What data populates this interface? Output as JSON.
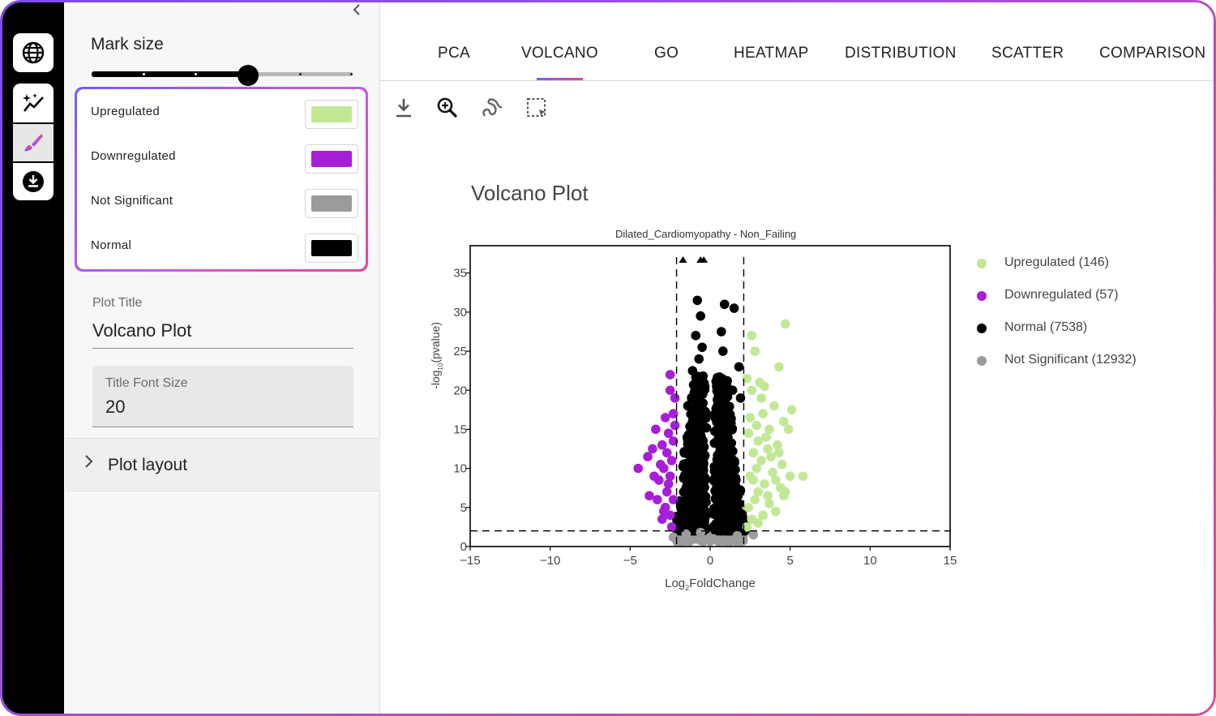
{
  "rail": {
    "icons": [
      "globe-icon",
      "sparkle-chart-icon",
      "brush-icon",
      "download-circle-icon"
    ]
  },
  "settings": {
    "mark_size_label": "Mark size",
    "mark_size_level": 0.6,
    "colors": [
      {
        "label": "Upregulated",
        "color": "#c2e895"
      },
      {
        "label": "Downregulated",
        "color": "#a71ed8"
      },
      {
        "label": "Not Significant",
        "color": "#9b9b9b"
      },
      {
        "label": "Normal",
        "color": "#000000"
      }
    ],
    "plot_title_label": "Plot Title",
    "plot_title_value": "Volcano Plot",
    "title_font_size_label": "Title Font Size",
    "title_font_size_value": "20",
    "plot_layout_label": "Plot layout"
  },
  "tabs": [
    "PCA",
    "VOLCANO",
    "GO",
    "HEATMAP",
    "DISTRIBUTION",
    "SCATTER",
    "COMPARISON"
  ],
  "active_tab": "VOLCANO",
  "toolbar_icons": [
    "download-icon",
    "zoom-in-icon",
    "lasso-icon",
    "box-select-icon"
  ],
  "chart_data": {
    "type": "scatter",
    "title": "Volcano Plot",
    "subtitle": "Dilated_Cardiomyopathy - Non_Failing",
    "xlabel": "Log2FoldChange",
    "ylabel": "-log10(pvalue)",
    "xlim": [
      -15,
      15
    ],
    "ylim": [
      0,
      38.5
    ],
    "xticks": [
      "−15",
      "−10",
      "−5",
      "0",
      "5",
      "10",
      "15"
    ],
    "yticks": [
      "0",
      "5",
      "10",
      "15",
      "20",
      "25",
      "30",
      "35"
    ],
    "xtick_values": [
      -15,
      -10,
      -5,
      0,
      5,
      10,
      15
    ],
    "ytick_values": [
      0,
      5,
      10,
      15,
      20,
      25,
      30,
      35
    ],
    "thresholds": {
      "fold_change": [
        -2.1,
        2.1
      ],
      "pvalue": 2
    },
    "legend_position": "right",
    "series": [
      {
        "name": "Upregulated (146)",
        "color": "#c2e895",
        "points": [
          [
            4.7,
            28.5
          ],
          [
            2.6,
            27
          ],
          [
            2.8,
            25
          ],
          [
            4.3,
            23
          ],
          [
            2.3,
            21.5
          ],
          [
            3.1,
            21
          ],
          [
            3.4,
            20.5
          ],
          [
            2.6,
            20
          ],
          [
            5.1,
            17.5
          ],
          [
            3.3,
            17
          ],
          [
            4.6,
            16
          ],
          [
            4.9,
            15
          ],
          [
            2.9,
            15.5
          ],
          [
            3.7,
            15
          ],
          [
            2.4,
            14.5
          ],
          [
            3.0,
            13.5
          ],
          [
            4.2,
            13
          ],
          [
            3.6,
            12.5
          ],
          [
            2.7,
            12
          ],
          [
            3.2,
            11
          ],
          [
            4.5,
            10.5
          ],
          [
            5.0,
            9
          ],
          [
            3.9,
            9.5
          ],
          [
            2.5,
            9
          ],
          [
            4.1,
            8.5
          ],
          [
            3.4,
            8
          ],
          [
            5.8,
            9
          ],
          [
            4.4,
            7.5
          ],
          [
            3.0,
            7
          ],
          [
            2.8,
            6
          ],
          [
            4.6,
            6.5
          ],
          [
            3.7,
            5.5
          ],
          [
            2.4,
            5
          ],
          [
            3.3,
            4
          ],
          [
            2.6,
            3.5
          ],
          [
            4.1,
            4.5
          ],
          [
            3.0,
            3
          ],
          [
            2.3,
            2.5
          ],
          [
            4.7,
            7
          ],
          [
            3.8,
            11.5
          ],
          [
            2.9,
            10
          ],
          [
            3.5,
            14
          ],
          [
            4.0,
            18
          ],
          [
            2.5,
            16.5
          ],
          [
            3.2,
            19
          ],
          [
            2.7,
            8.5
          ],
          [
            4.3,
            12
          ],
          [
            3.6,
            6.5
          ]
        ]
      },
      {
        "name": "Downregulated (57)",
        "color": "#a71ed8",
        "points": [
          [
            -2.5,
            22
          ],
          [
            -2.2,
            19
          ],
          [
            -2.3,
            17
          ],
          [
            -2.8,
            16.5
          ],
          [
            -3.4,
            15
          ],
          [
            -2.6,
            14.5
          ],
          [
            -2.3,
            13.5
          ],
          [
            -3.0,
            13
          ],
          [
            -2.7,
            12
          ],
          [
            -3.9,
            11.5
          ],
          [
            -2.4,
            11
          ],
          [
            -2.9,
            10
          ],
          [
            -4.5,
            10
          ],
          [
            -3.5,
            9
          ],
          [
            -2.5,
            9
          ],
          [
            -3.2,
            8.5
          ],
          [
            -2.7,
            7
          ],
          [
            -3.8,
            6.5
          ],
          [
            -2.3,
            6
          ],
          [
            -3.3,
            6
          ],
          [
            -2.8,
            5
          ],
          [
            -2.5,
            4
          ],
          [
            -3.0,
            3.5
          ],
          [
            -2.4,
            2.5
          ],
          [
            -2.6,
            8
          ],
          [
            -3.6,
            12.5
          ],
          [
            -2.2,
            15.5
          ],
          [
            -3.1,
            10.5
          ],
          [
            -2.9,
            4.5
          ],
          [
            -2.5,
            20
          ]
        ]
      },
      {
        "name": "Normal (7538)",
        "color": "#000000",
        "points": [
          [
            -0.8,
            31.5
          ],
          [
            0.9,
            31
          ],
          [
            1.5,
            30.5
          ],
          [
            -0.6,
            29.5
          ],
          [
            0.7,
            27.5
          ],
          [
            -0.9,
            27
          ],
          [
            -0.5,
            25.5
          ],
          [
            0.8,
            25
          ],
          [
            1.8,
            23
          ],
          [
            -0.7,
            24
          ],
          [
            -1.1,
            22.5
          ],
          [
            -0.6,
            21
          ],
          [
            0.4,
            20.5
          ],
          [
            1.4,
            20
          ],
          [
            -0.9,
            19
          ],
          [
            1.9,
            19
          ],
          [
            0.6,
            18.5
          ],
          [
            -1.4,
            18
          ],
          [
            1.1,
            17.5
          ],
          [
            -0.3,
            17
          ]
        ]
      },
      {
        "name": "Not Significant (12932)",
        "color": "#9b9b9b",
        "points": [
          [
            -2.3,
            1.2
          ],
          [
            2.7,
            1.5
          ],
          [
            -1.5,
            1.6
          ],
          [
            1.7,
            1.4
          ],
          [
            0.2,
            1.0
          ],
          [
            -0.6,
            1.8
          ]
        ]
      }
    ]
  }
}
